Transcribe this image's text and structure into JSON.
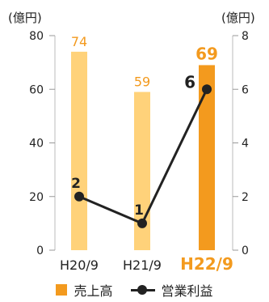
{
  "chart_data": {
    "type": "bar+line",
    "categories": [
      "H20/9",
      "H21/9",
      "H22/9"
    ],
    "left_axis": {
      "unit": "(億円)",
      "ylim": [
        0,
        80
      ],
      "ticks": [
        0,
        20,
        40,
        60,
        80
      ]
    },
    "right_axis": {
      "unit": "(億円)",
      "ylim": [
        0,
        8
      ],
      "ticks": [
        0,
        2,
        4,
        6,
        8
      ]
    },
    "series": [
      {
        "name": "売上高",
        "type": "bar",
        "axis": "left",
        "values": [
          74,
          59,
          69
        ],
        "color": "#FFD27A",
        "highlight_color": "#F39A1E",
        "highlight_index": 2
      },
      {
        "name": "営業利益",
        "type": "line",
        "axis": "right",
        "values": [
          2,
          1,
          6
        ],
        "color": "#222222"
      }
    ],
    "label_color_bar": "#F39A1E",
    "label_color_line": "#222222",
    "legend_position": "bottom"
  }
}
